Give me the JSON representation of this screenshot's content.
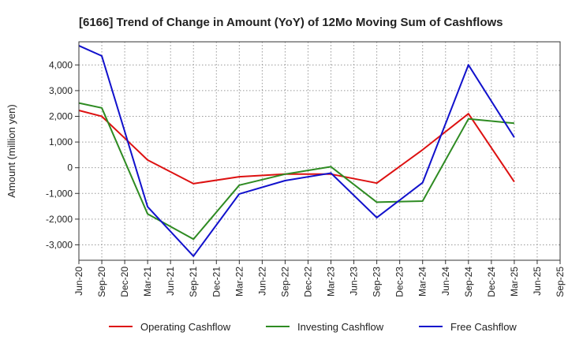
{
  "chart_data": {
    "type": "line",
    "title": "[6166]  Trend of Change in Amount (YoY) of 12Mo Moving Sum of Cashflows",
    "xlabel": "",
    "ylabel": "Amount (million yen)",
    "ylim": [
      -3600,
      4900
    ],
    "yticks": [
      4000,
      3000,
      2000,
      1000,
      0,
      -1000,
      -2000,
      -3000
    ],
    "ytick_labels": [
      "4,000",
      "3,000",
      "2,000",
      "1,000",
      "0",
      "-1,000",
      "-2,000",
      "-3,000"
    ],
    "categories": [
      "Jun-20",
      "Sep-20",
      "Dec-20",
      "Mar-21",
      "Jun-21",
      "Sep-21",
      "Dec-21",
      "Mar-22",
      "Jun-22",
      "Sep-22",
      "Dec-22",
      "Mar-23",
      "Jun-23",
      "Sep-23",
      "Dec-23",
      "Mar-24",
      "Jun-24",
      "Sep-24",
      "Dec-24",
      "Mar-25",
      "Jun-25",
      "Sep-25"
    ],
    "grid": true,
    "legend_position": "bottom",
    "series": [
      {
        "name": "Operating Cashflow",
        "color": "#dd1111",
        "values": [
          2230,
          2000,
          1150,
          300,
          null,
          -620,
          null,
          -350,
          null,
          -250,
          null,
          -250,
          null,
          -600,
          null,
          700,
          null,
          2100,
          null,
          -550,
          null,
          null
        ]
      },
      {
        "name": "Investing Cashflow",
        "color": "#2e8b22",
        "values": [
          2520,
          2330,
          null,
          -1800,
          null,
          -2780,
          null,
          -680,
          null,
          -250,
          null,
          40,
          null,
          -1340,
          null,
          -1300,
          null,
          1900,
          null,
          1730,
          null,
          null
        ]
      },
      {
        "name": "Free Cashflow",
        "color": "#1111cc",
        "values": [
          4750,
          4350,
          null,
          -1520,
          null,
          -3440,
          null,
          -1020,
          null,
          -500,
          null,
          -210,
          null,
          -1940,
          null,
          -580,
          null,
          4000,
          null,
          1180,
          null,
          null
        ]
      }
    ]
  }
}
